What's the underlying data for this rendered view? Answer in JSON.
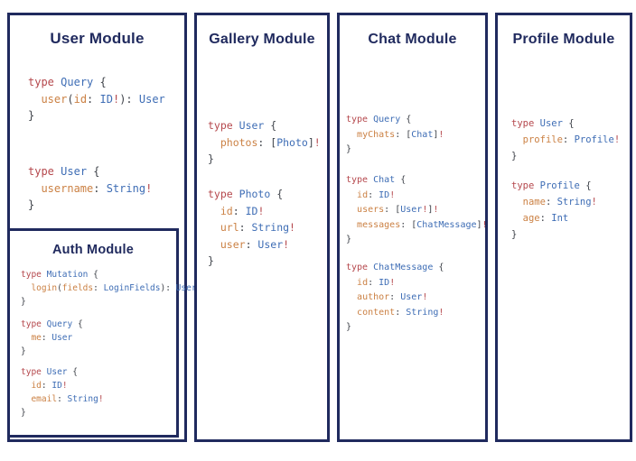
{
  "colors": {
    "navy": "#202a5e",
    "kw": "#b5484d",
    "ty": "#3e6db5",
    "fl": "#cb8144",
    "pn": "#3f434a"
  },
  "modules": [
    {
      "title": "User Module",
      "blocks": [
        [
          [
            [
              "kw",
              "type"
            ],
            [
              "pn",
              " "
            ],
            [
              "ty",
              "Query"
            ],
            [
              "pn",
              " {"
            ]
          ],
          [
            [
              "pn",
              "  "
            ],
            [
              "fl",
              "user"
            ],
            [
              "pn",
              "("
            ],
            [
              "fl",
              "id"
            ],
            [
              "pn",
              ": "
            ],
            [
              "ty",
              "ID"
            ],
            [
              "bg",
              "!"
            ],
            [
              "pn",
              "): "
            ],
            [
              "ty",
              "User"
            ]
          ],
          [
            [
              "pn",
              "}"
            ]
          ]
        ],
        [
          [
            [
              "kw",
              "type"
            ],
            [
              "pn",
              " "
            ],
            [
              "ty",
              "User"
            ],
            [
              "pn",
              " {"
            ]
          ],
          [
            [
              "pn",
              "  "
            ],
            [
              "fl",
              "username"
            ],
            [
              "pn",
              ": "
            ],
            [
              "ty",
              "String"
            ],
            [
              "bg",
              "!"
            ]
          ],
          [
            [
              "pn",
              "}"
            ]
          ]
        ]
      ]
    },
    {
      "title": "Auth Module",
      "blocks": [
        [
          [
            [
              "kw",
              "type"
            ],
            [
              "pn",
              " "
            ],
            [
              "ty",
              "Mutation"
            ],
            [
              "pn",
              " {"
            ]
          ],
          [
            [
              "pn",
              "  "
            ],
            [
              "fl",
              "login"
            ],
            [
              "pn",
              "("
            ],
            [
              "fl",
              "fields"
            ],
            [
              "pn",
              ": "
            ],
            [
              "ty",
              "LoginFields"
            ],
            [
              "pn",
              "): "
            ],
            [
              "ty",
              "User"
            ]
          ],
          [
            [
              "pn",
              "}"
            ]
          ]
        ],
        [
          [
            [
              "kw",
              "type"
            ],
            [
              "pn",
              " "
            ],
            [
              "ty",
              "Query"
            ],
            [
              "pn",
              " {"
            ]
          ],
          [
            [
              "pn",
              "  "
            ],
            [
              "fl",
              "me"
            ],
            [
              "pn",
              ": "
            ],
            [
              "ty",
              "User"
            ]
          ],
          [
            [
              "pn",
              "}"
            ]
          ]
        ],
        [
          [
            [
              "kw",
              "type"
            ],
            [
              "pn",
              " "
            ],
            [
              "ty",
              "User"
            ],
            [
              "pn",
              " {"
            ]
          ],
          [
            [
              "pn",
              "  "
            ],
            [
              "fl",
              "id"
            ],
            [
              "pn",
              ": "
            ],
            [
              "ty",
              "ID"
            ],
            [
              "bg",
              "!"
            ]
          ],
          [
            [
              "pn",
              "  "
            ],
            [
              "fl",
              "email"
            ],
            [
              "pn",
              ": "
            ],
            [
              "ty",
              "String"
            ],
            [
              "bg",
              "!"
            ]
          ],
          [
            [
              "pn",
              "}"
            ]
          ]
        ]
      ]
    },
    {
      "title": "Gallery Module",
      "blocks": [
        [
          [
            [
              "kw",
              "type"
            ],
            [
              "pn",
              " "
            ],
            [
              "ty",
              "User"
            ],
            [
              "pn",
              " {"
            ]
          ],
          [
            [
              "pn",
              "  "
            ],
            [
              "fl",
              "photos"
            ],
            [
              "pn",
              ": ["
            ],
            [
              "ty",
              "Photo"
            ],
            [
              "pn",
              "]"
            ],
            [
              "bg",
              "!"
            ]
          ],
          [
            [
              "pn",
              "}"
            ]
          ]
        ],
        [
          [
            [
              "kw",
              "type"
            ],
            [
              "pn",
              " "
            ],
            [
              "ty",
              "Photo"
            ],
            [
              "pn",
              " {"
            ]
          ],
          [
            [
              "pn",
              "  "
            ],
            [
              "fl",
              "id"
            ],
            [
              "pn",
              ": "
            ],
            [
              "ty",
              "ID"
            ],
            [
              "bg",
              "!"
            ]
          ],
          [
            [
              "pn",
              "  "
            ],
            [
              "fl",
              "url"
            ],
            [
              "pn",
              ": "
            ],
            [
              "ty",
              "String"
            ],
            [
              "bg",
              "!"
            ]
          ],
          [
            [
              "pn",
              "  "
            ],
            [
              "fl",
              "user"
            ],
            [
              "pn",
              ": "
            ],
            [
              "ty",
              "User"
            ],
            [
              "bg",
              "!"
            ]
          ],
          [
            [
              "pn",
              "}"
            ]
          ]
        ]
      ]
    },
    {
      "title": "Chat Module",
      "blocks": [
        [
          [
            [
              "kw",
              "type"
            ],
            [
              "pn",
              " "
            ],
            [
              "ty",
              "Query"
            ],
            [
              "pn",
              " {"
            ]
          ],
          [
            [
              "pn",
              "  "
            ],
            [
              "fl",
              "myChats"
            ],
            [
              "pn",
              ": ["
            ],
            [
              "ty",
              "Chat"
            ],
            [
              "pn",
              "]"
            ],
            [
              "bg",
              "!"
            ]
          ],
          [
            [
              "pn",
              "}"
            ]
          ]
        ],
        [
          [
            [
              "kw",
              "type"
            ],
            [
              "pn",
              " "
            ],
            [
              "ty",
              "Chat"
            ],
            [
              "pn",
              " {"
            ]
          ],
          [
            [
              "pn",
              "  "
            ],
            [
              "fl",
              "id"
            ],
            [
              "pn",
              ": "
            ],
            [
              "ty",
              "ID"
            ],
            [
              "bg",
              "!"
            ]
          ],
          [
            [
              "pn",
              "  "
            ],
            [
              "fl",
              "users"
            ],
            [
              "pn",
              ": ["
            ],
            [
              "ty",
              "User"
            ],
            [
              "bg",
              "!"
            ],
            [
              "pn",
              "]"
            ],
            [
              "bg",
              "!"
            ]
          ],
          [
            [
              "pn",
              "  "
            ],
            [
              "fl",
              "messages"
            ],
            [
              "pn",
              ": ["
            ],
            [
              "ty",
              "ChatMessage"
            ],
            [
              "pn",
              "]"
            ],
            [
              "bg",
              "!"
            ]
          ],
          [
            [
              "pn",
              "}"
            ]
          ]
        ],
        [
          [
            [
              "kw",
              "type"
            ],
            [
              "pn",
              " "
            ],
            [
              "ty",
              "ChatMessage"
            ],
            [
              "pn",
              " {"
            ]
          ],
          [
            [
              "pn",
              "  "
            ],
            [
              "fl",
              "id"
            ],
            [
              "pn",
              ": "
            ],
            [
              "ty",
              "ID"
            ],
            [
              "bg",
              "!"
            ]
          ],
          [
            [
              "pn",
              "  "
            ],
            [
              "fl",
              "author"
            ],
            [
              "pn",
              ": "
            ],
            [
              "ty",
              "User"
            ],
            [
              "bg",
              "!"
            ]
          ],
          [
            [
              "pn",
              "  "
            ],
            [
              "fl",
              "content"
            ],
            [
              "pn",
              ": "
            ],
            [
              "ty",
              "String"
            ],
            [
              "bg",
              "!"
            ]
          ],
          [
            [
              "pn",
              "}"
            ]
          ]
        ]
      ]
    },
    {
      "title": "Profile Module",
      "blocks": [
        [
          [
            [
              "kw",
              "type"
            ],
            [
              "pn",
              " "
            ],
            [
              "ty",
              "User"
            ],
            [
              "pn",
              " {"
            ]
          ],
          [
            [
              "pn",
              "  "
            ],
            [
              "fl",
              "profile"
            ],
            [
              "pn",
              ": "
            ],
            [
              "ty",
              "Profile"
            ],
            [
              "bg",
              "!"
            ]
          ],
          [
            [
              "pn",
              "}"
            ]
          ]
        ],
        [
          [
            [
              "kw",
              "type"
            ],
            [
              "pn",
              " "
            ],
            [
              "ty",
              "Profile"
            ],
            [
              "pn",
              " {"
            ]
          ],
          [
            [
              "pn",
              "  "
            ],
            [
              "fl",
              "name"
            ],
            [
              "pn",
              ": "
            ],
            [
              "ty",
              "String"
            ],
            [
              "bg",
              "!"
            ]
          ],
          [
            [
              "pn",
              "  "
            ],
            [
              "fl",
              "age"
            ],
            [
              "pn",
              ": "
            ],
            [
              "ty",
              "Int"
            ]
          ],
          [
            [
              "pn",
              "}"
            ]
          ]
        ]
      ]
    }
  ]
}
